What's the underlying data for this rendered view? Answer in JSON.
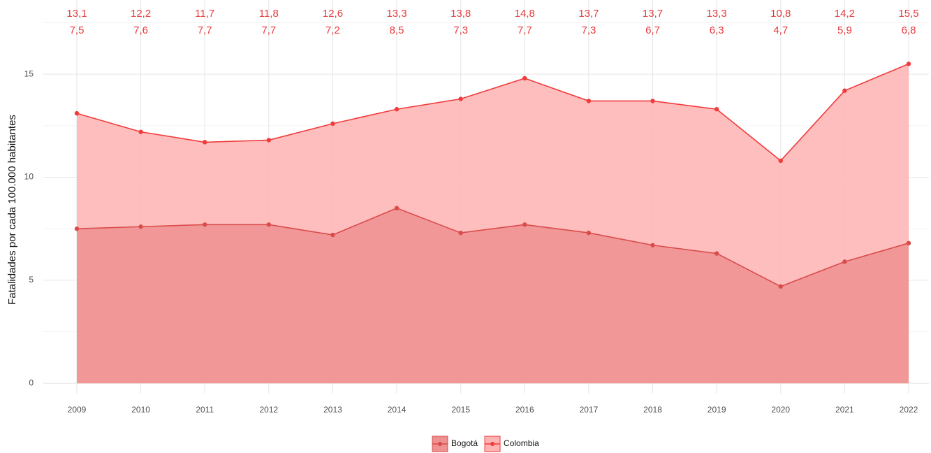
{
  "chart_data": {
    "type": "area",
    "y_label": "Fatalidades por cada 100.000 habitantes",
    "categories": [
      "2009",
      "2010",
      "2011",
      "2012",
      "2013",
      "2014",
      "2015",
      "2016",
      "2017",
      "2018",
      "2019",
      "2020",
      "2021",
      "2022"
    ],
    "series": [
      {
        "name": "Colombia",
        "color": "#f03c3c",
        "fill": "#ffb3b3",
        "values": [
          13.1,
          12.2,
          11.7,
          11.8,
          12.6,
          13.3,
          13.8,
          14.8,
          13.7,
          13.7,
          13.3,
          10.8,
          14.2,
          15.5
        ],
        "value_labels": [
          "13,1",
          "12,2",
          "11,7",
          "11,8",
          "12,6",
          "13,3",
          "13,8",
          "14,8",
          "13,7",
          "13,7",
          "13,3",
          "10,8",
          "14,2",
          "15,5"
        ]
      },
      {
        "name": "Bogotá",
        "color": "#d94c4c",
        "fill": "#ee9090",
        "values": [
          7.5,
          7.6,
          7.7,
          7.7,
          7.2,
          8.5,
          7.3,
          7.7,
          7.3,
          6.7,
          6.3,
          4.7,
          5.9,
          6.8
        ],
        "value_labels": [
          "7,5",
          "7,6",
          "7,7",
          "7,7",
          "7,2",
          "8,5",
          "7,3",
          "7,7",
          "7,3",
          "6,7",
          "6,3",
          "4,7",
          "5,9",
          "6,8"
        ]
      }
    ],
    "ylim": [
      -0.5,
      18.6
    ],
    "yticks": [
      0,
      5,
      10,
      15
    ],
    "grid": true,
    "legend": "bottom"
  }
}
